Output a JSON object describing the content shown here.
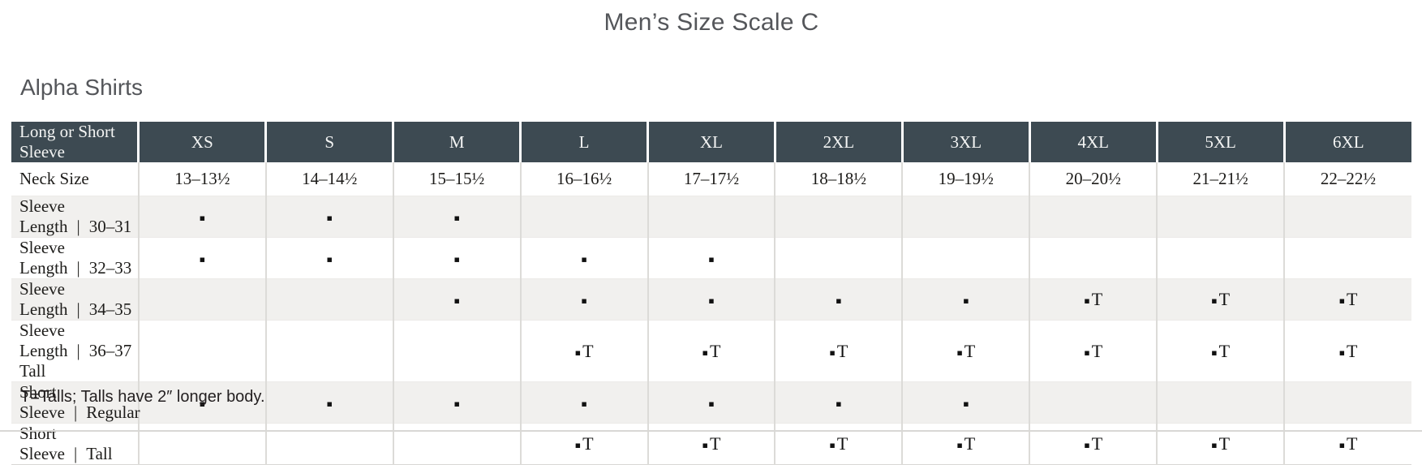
{
  "page": {
    "title": "Men’s Size Scale C",
    "section_heading": "Alpha Shirts",
    "footnote": "T=Talls; Talls have 2″ longer body."
  },
  "colors": {
    "header_bg": "#3d4a52",
    "header_text": "#f4f5f4",
    "shaded_row_bg": "#f1f0ee",
    "row_bg": "#ffffff",
    "grid_line": "#dcdbd8",
    "heading_text": "#54565a",
    "body_text": "#1d1c1a",
    "bottom_rule": "#d9d8d5"
  },
  "table": {
    "label_separator": "|",
    "marks": {
      "dot": "▪",
      "tall_letter": "T"
    },
    "header": {
      "label": "Long or Short Sleeve",
      "columns": [
        "XS",
        "S",
        "M",
        "L",
        "XL",
        "2XL",
        "3XL",
        "4XL",
        "5XL",
        "6XL"
      ]
    },
    "rows": [
      {
        "label_parts": [
          "Neck Size"
        ],
        "type": "text",
        "shaded": false,
        "cells": [
          "13–13½",
          "14–14½",
          "15–15½",
          "16–16½",
          "17–17½",
          "18–18½",
          "19–19½",
          "20–20½",
          "21–21½",
          "22–22½"
        ]
      },
      {
        "label_parts": [
          "Sleeve Length",
          "30–31"
        ],
        "type": "marks",
        "shaded": true,
        "cells": [
          "dot",
          "dot",
          "dot",
          "",
          "",
          "",
          "",
          "",
          "",
          ""
        ]
      },
      {
        "label_parts": [
          "Sleeve Length",
          "32–33"
        ],
        "type": "marks",
        "shaded": false,
        "cells": [
          "dot",
          "dot",
          "dot",
          "dot",
          "dot",
          "",
          "",
          "",
          "",
          ""
        ]
      },
      {
        "label_parts": [
          "Sleeve Length",
          "34–35"
        ],
        "type": "marks",
        "shaded": true,
        "cells": [
          "",
          "",
          "dot",
          "dot",
          "dot",
          "dot",
          "dot",
          "T",
          "T",
          "T"
        ]
      },
      {
        "label_parts": [
          "Sleeve Length",
          "36–37 Tall"
        ],
        "type": "marks",
        "shaded": false,
        "cells": [
          "",
          "",
          "",
          "T",
          "T",
          "T",
          "T",
          "T",
          "T",
          "T"
        ]
      },
      {
        "label_parts": [
          "Short Sleeve",
          "Regular"
        ],
        "type": "marks",
        "shaded": true,
        "cells": [
          "dot",
          "dot",
          "dot",
          "dot",
          "dot",
          "dot",
          "dot",
          "",
          "",
          ""
        ]
      },
      {
        "label_parts": [
          "Short Sleeve",
          "Tall"
        ],
        "type": "marks",
        "shaded": false,
        "cells": [
          "",
          "",
          "",
          "T",
          "T",
          "T",
          "T",
          "T",
          "T",
          "T"
        ]
      }
    ]
  }
}
